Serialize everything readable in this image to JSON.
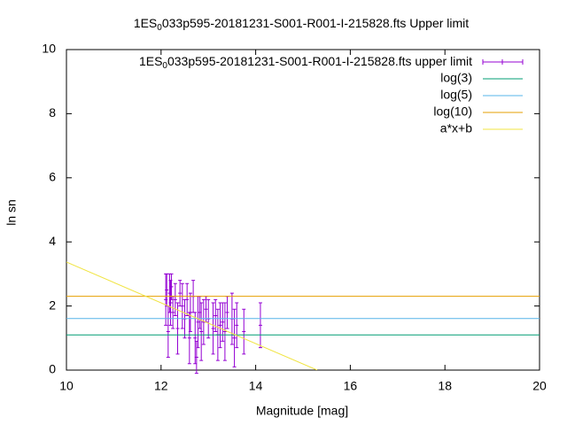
{
  "chart_data": {
    "type": "errorbar",
    "title_parts": [
      "1ES",
      "0",
      "033p595-20181231-S001-R001-I-215828.fts Upper limit"
    ],
    "xlabel": "Magnitude [mag]",
    "ylabel": "ln sn",
    "xlim": [
      10,
      20
    ],
    "ylim": [
      0,
      10
    ],
    "xticks": [
      10,
      12,
      14,
      16,
      18,
      20
    ],
    "yticks": [
      0,
      2,
      4,
      6,
      8,
      10
    ],
    "legend": "top-right",
    "series": [
      {
        "name_parts": [
          "1ES",
          "0",
          "033p595-20181231-S001-R001-I-215828.fts upper limit"
        ],
        "color": "#9400d3",
        "style": "errorbar",
        "x": [
          12.1,
          12.12,
          12.15,
          12.18,
          12.2,
          12.22,
          12.25,
          12.3,
          12.35,
          12.4,
          12.45,
          12.5,
          12.55,
          12.6,
          12.62,
          12.68,
          12.72,
          12.75,
          12.78,
          12.82,
          12.85,
          12.9,
          12.95,
          13.0,
          13.1,
          13.15,
          13.2,
          13.25,
          13.3,
          13.35,
          13.4,
          13.5,
          13.55,
          13.6,
          13.75,
          14.1
        ],
        "values": [
          2.2,
          2.5,
          1.2,
          2.4,
          2.1,
          2.6,
          1.8,
          2.2,
          1.3,
          2.4,
          2.0,
          1.6,
          2.2,
          1.0,
          1.8,
          2.3,
          1.0,
          0.4,
          1.5,
          1.8,
          1.2,
          1.5,
          1.9,
          1.6,
          1.3,
          1.7,
          1.1,
          1.4,
          1.5,
          1.2,
          1.8,
          1.6,
          1.0,
          1.4,
          1.2,
          1.4
        ],
        "errors": [
          0.8,
          0.5,
          0.8,
          0.6,
          0.7,
          0.4,
          0.5,
          0.5,
          0.8,
          0.4,
          0.7,
          0.6,
          0.5,
          0.8,
          0.6,
          0.5,
          0.8,
          0.5,
          0.8,
          0.5,
          0.9,
          0.7,
          0.4,
          0.6,
          0.8,
          0.5,
          0.8,
          0.7,
          0.6,
          0.9,
          0.5,
          0.8,
          0.9,
          0.7,
          0.7,
          0.7
        ]
      },
      {
        "name": "log(3)",
        "color": "#009e73",
        "style": "line",
        "x": [
          10,
          20
        ],
        "values": [
          1.0986,
          1.0986
        ]
      },
      {
        "name": "log(5)",
        "color": "#56b4e9",
        "style": "line",
        "x": [
          10,
          20
        ],
        "values": [
          1.6094,
          1.6094
        ]
      },
      {
        "name": "log(10)",
        "color": "#e69f00",
        "style": "line",
        "x": [
          10,
          20
        ],
        "values": [
          2.3026,
          2.3026
        ]
      },
      {
        "name": "a*x+b",
        "color": "#f0e442",
        "style": "line",
        "x": [
          10,
          15.3
        ],
        "values": [
          3.37,
          0
        ]
      }
    ]
  }
}
